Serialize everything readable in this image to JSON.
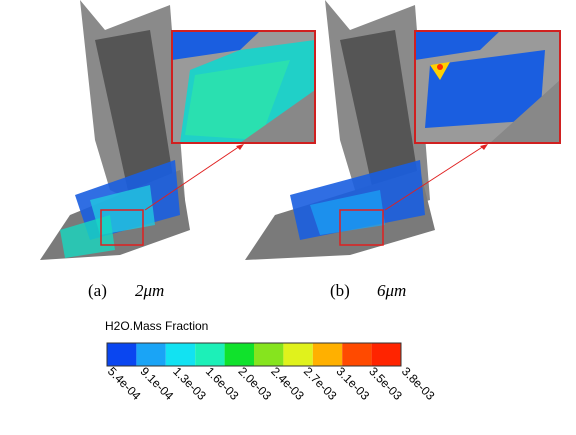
{
  "panels": [
    {
      "label": "(a)",
      "size": "2μm"
    },
    {
      "label": "(b)",
      "size": "6μm"
    }
  ],
  "colorbar": {
    "title": "H2O.Mass Fraction",
    "labels": [
      "5.4e-04",
      "9.1e-04",
      "1.3e-03",
      "1.6e-03",
      "2.0e-03",
      "2.4e-03",
      "2.7e-03",
      "3.1e-03",
      "3.5e-03",
      "3.8e-03"
    ],
    "colors": [
      "#0a46f0",
      "#1aa4f6",
      "#12e2f2",
      "#1cf0b8",
      "#10e22c",
      "#86e41e",
      "#e0f21c",
      "#ffb000",
      "#ff4a00",
      "#ff2400"
    ]
  }
}
